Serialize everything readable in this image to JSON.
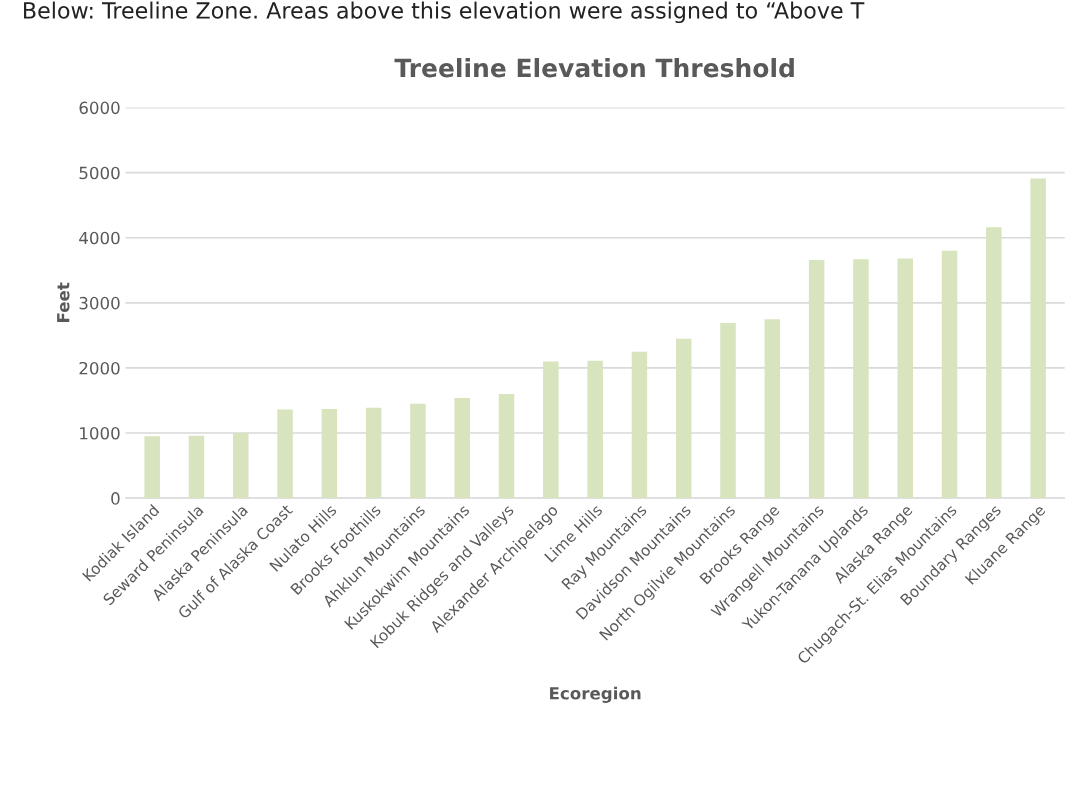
{
  "chart_data": {
    "type": "bar",
    "title": "Treeline Elevation Threshold",
    "xlabel": "Ecoregion",
    "ylabel": "Feet",
    "annotations": [
      "Below: Treeline Zone. Areas above this elevation were assigned to “Above T"
    ],
    "categories": [
      "Kodiak Island",
      "Seward Peninsula",
      "Alaska Peninsula",
      "Gulf of Alaska Coast",
      "Nulato Hills",
      "Brooks Foothills",
      "Ahklun Mountains",
      "Kuskokwim Mountains",
      "Kobuk Ridges and Valleys",
      "Alexander Archipelago",
      "Lime Hills",
      "Ray Mountains",
      "Davidson Mountains",
      "North Ogilvie Mountains",
      "Brooks Range",
      "Wrangell Mountains",
      "Yukon-Tanana Uplands",
      "Alaska Range",
      "Chugach-St. Elias Mountains",
      "Boundary Ranges",
      "Kluane Range"
    ],
    "values": [
      950,
      960,
      1000,
      1360,
      1370,
      1390,
      1450,
      1540,
      1600,
      2100,
      2110,
      2250,
      2450,
      2690,
      2750,
      3660,
      3670,
      3680,
      3800,
      4160,
      4910
    ],
    "color": "#d7e4bd",
    "ylim": [
      0,
      6000
    ],
    "yticks": [
      0,
      1000,
      2000,
      3000,
      4000,
      5000,
      6000
    ],
    "grid": "y"
  }
}
